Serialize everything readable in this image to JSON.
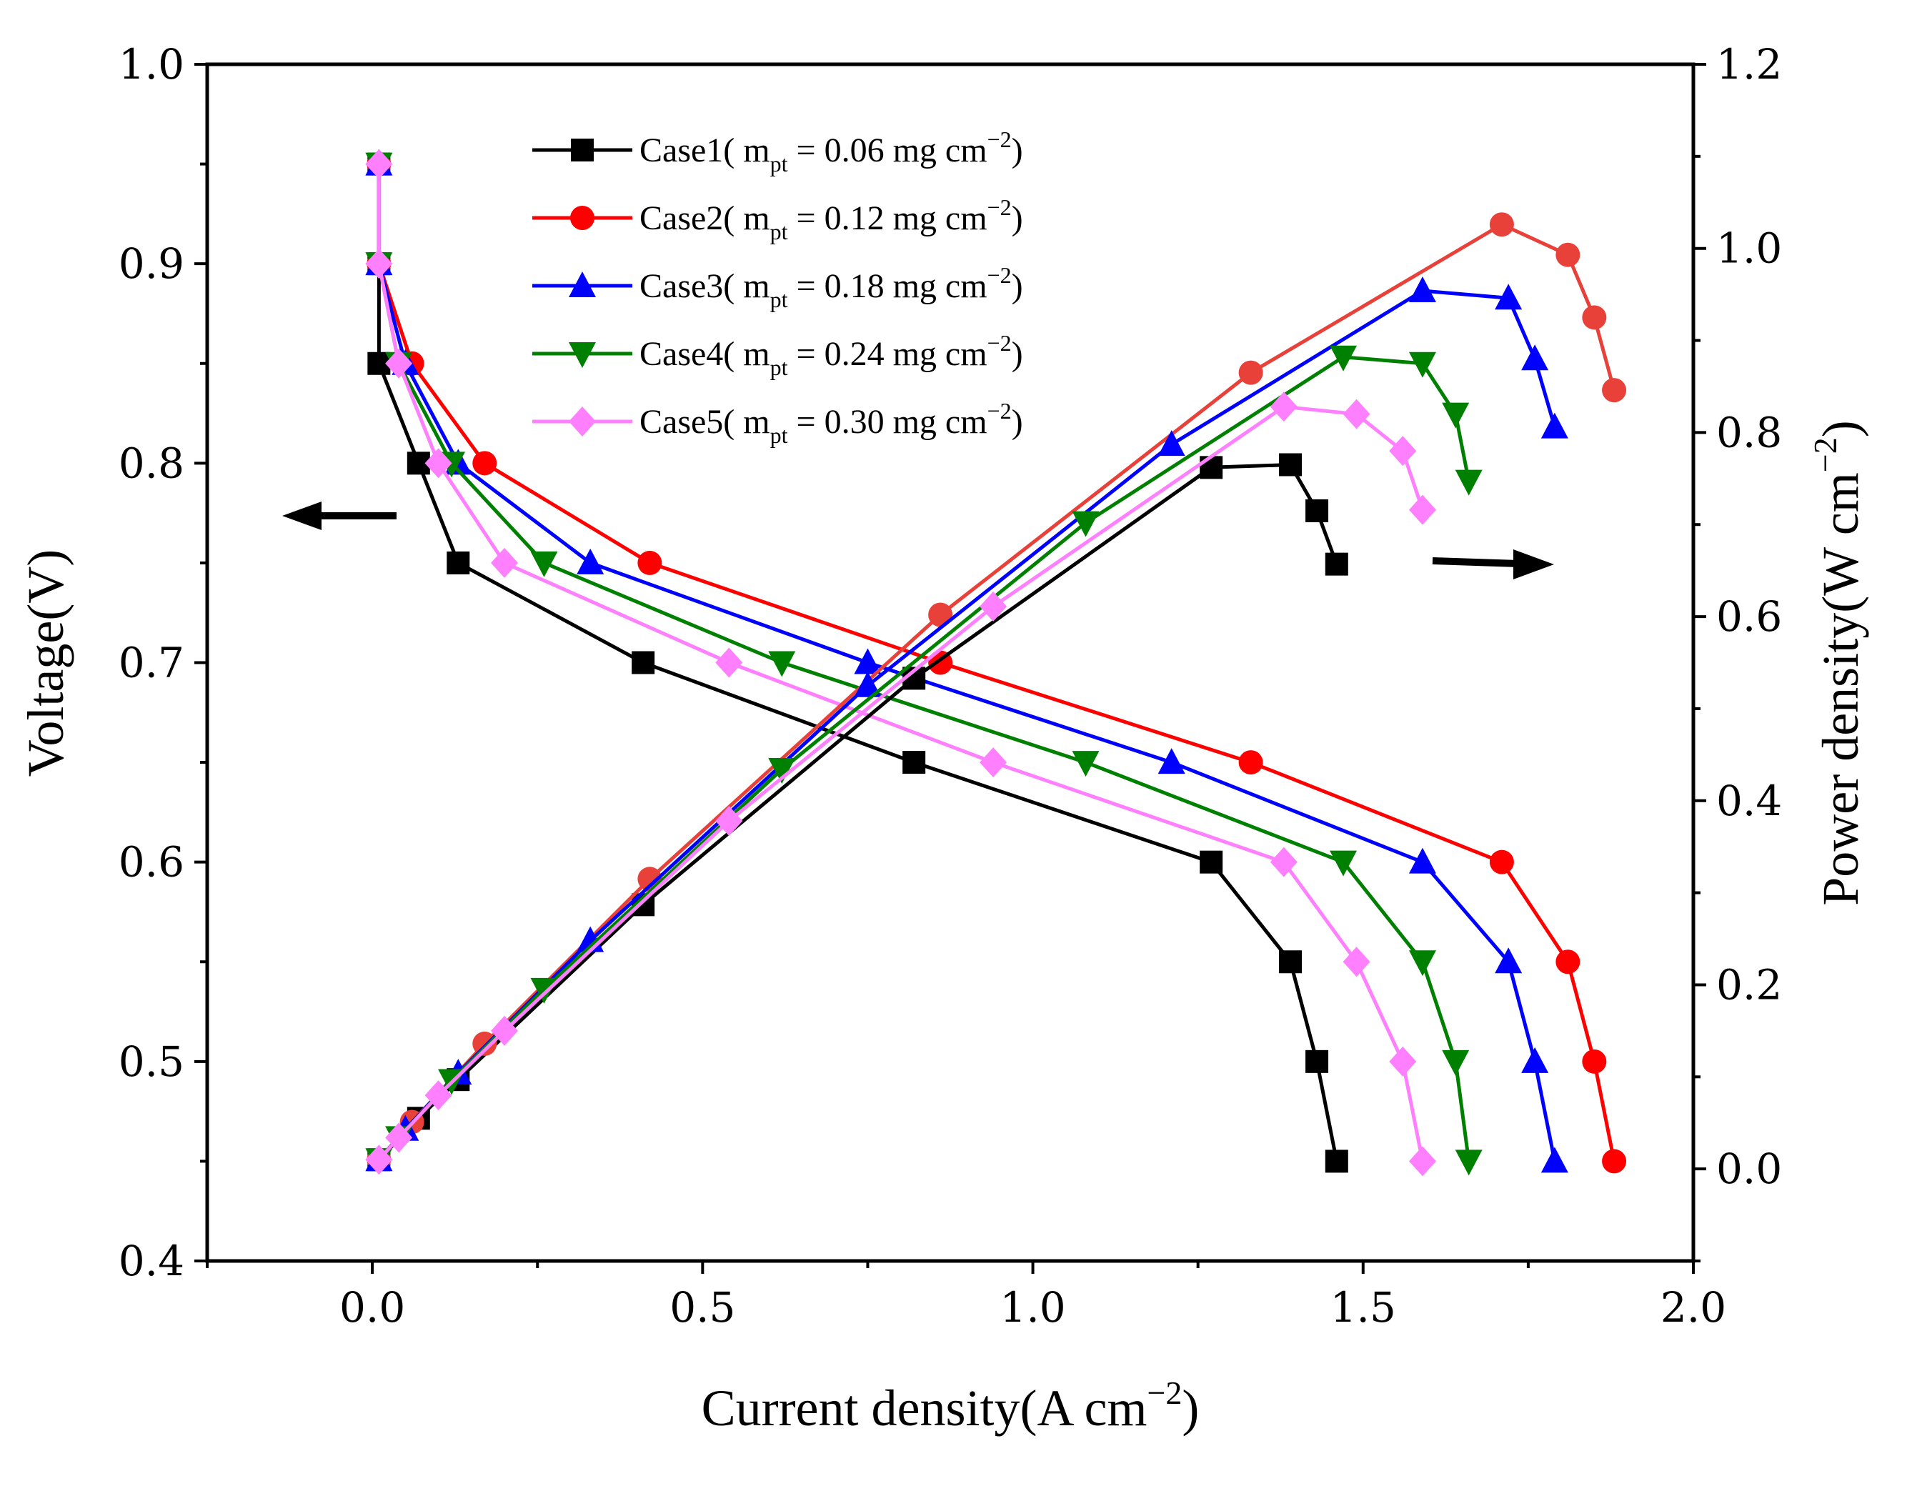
{
  "chart_data": {
    "type": "line",
    "x_axis": {
      "label": "Current density(A cm",
      "label_sup": "−2",
      "label_end": ")",
      "range": [
        -0.25,
        2.0
      ],
      "ticks": [
        "0.0",
        "0.5",
        "1.0",
        "1.5",
        "2.0"
      ]
    },
    "y_axis_left": {
      "label": "Voltage(V)",
      "range": [
        0.4,
        1.0
      ],
      "ticks": [
        "0.4",
        "0.5",
        "0.6",
        "0.7",
        "0.8",
        "0.9",
        "1.0"
      ]
    },
    "y_axis_right": {
      "label": "Power density(W cm",
      "label_sup": "−2",
      "label_end": ")",
      "range": [
        -0.1,
        1.2
      ],
      "ticks": [
        "0.0",
        "0.2",
        "0.4",
        "0.6",
        "0.8",
        "1.0",
        "1.2"
      ]
    },
    "annotations": {
      "left_arrow": "points to voltage axis",
      "right_arrow": "points to power density axis"
    },
    "legend": {
      "position": "top-center"
    },
    "series": [
      {
        "name": "Case1",
        "legend_prefix": "Case1( m",
        "legend_sub": "pt",
        "legend_mid": " = 0.06 mg cm",
        "legend_sup": "−2",
        "legend_end": ")",
        "color": "#000000",
        "power_color": "#000000",
        "marker": "square",
        "polarization": {
          "x": [
            0.01,
            0.01,
            0.01,
            0.07,
            0.13,
            0.41,
            0.82,
            1.27,
            1.39,
            1.43,
            1.46
          ],
          "y": [
            0.95,
            0.9,
            0.85,
            0.8,
            0.75,
            0.7,
            0.65,
            0.6,
            0.55,
            0.5,
            0.45
          ]
        },
        "power": {
          "x": [
            0.01,
            0.07,
            0.13,
            0.41,
            0.82,
            1.27,
            1.39,
            1.43,
            1.46
          ],
          "y": [
            0.01,
            0.055,
            0.097,
            0.287,
            0.533,
            0.762,
            0.765,
            0.715,
            0.657
          ]
        }
      },
      {
        "name": "Case2",
        "legend_prefix": "Case2( m",
        "legend_sub": "pt",
        "legend_mid": " = 0.12 mg cm",
        "legend_sup": "−2",
        "legend_end": ")",
        "color": "#ff0000",
        "power_color": "#e8413a",
        "marker": "circle",
        "polarization": {
          "x": [
            0.01,
            0.01,
            0.06,
            0.17,
            0.42,
            0.86,
            1.33,
            1.71,
            1.81,
            1.85,
            1.88
          ],
          "y": [
            0.95,
            0.9,
            0.85,
            0.8,
            0.75,
            0.7,
            0.65,
            0.6,
            0.55,
            0.5,
            0.45
          ]
        },
        "power": {
          "x": [
            0.01,
            0.06,
            0.17,
            0.42,
            0.86,
            1.33,
            1.71,
            1.81,
            1.85,
            1.88
          ],
          "y": [
            0.01,
            0.051,
            0.136,
            0.315,
            0.602,
            0.865,
            1.026,
            0.993,
            0.925,
            0.846
          ]
        }
      },
      {
        "name": "Case3",
        "legend_prefix": "Case3( m",
        "legend_sub": "pt",
        "legend_mid": " = 0.18 mg cm",
        "legend_sup": "−2",
        "legend_end": ")",
        "color": "#0000ff",
        "power_color": "#0000ff",
        "marker": "triangle-up",
        "polarization": {
          "x": [
            0.01,
            0.01,
            0.05,
            0.13,
            0.33,
            0.75,
            1.21,
            1.59,
            1.72,
            1.76,
            1.79
          ],
          "y": [
            0.95,
            0.9,
            0.85,
            0.8,
            0.75,
            0.7,
            0.65,
            0.6,
            0.55,
            0.5,
            0.45
          ]
        },
        "power": {
          "x": [
            0.01,
            0.05,
            0.13,
            0.33,
            0.75,
            1.21,
            1.59,
            1.72,
            1.76,
            1.79
          ],
          "y": [
            0.01,
            0.043,
            0.104,
            0.248,
            0.525,
            0.787,
            0.954,
            0.946,
            0.88,
            0.806
          ]
        }
      },
      {
        "name": "Case4",
        "legend_prefix": "Case4( m",
        "legend_sub": "pt",
        "legend_mid": " = 0.24 mg cm",
        "legend_sup": "−2",
        "legend_end": ")",
        "color": "#008000",
        "power_color": "#008000",
        "marker": "triangle-down",
        "polarization": {
          "x": [
            0.01,
            0.01,
            0.04,
            0.12,
            0.26,
            0.62,
            1.08,
            1.47,
            1.59,
            1.64,
            1.66
          ],
          "y": [
            0.95,
            0.9,
            0.85,
            0.8,
            0.75,
            0.7,
            0.65,
            0.6,
            0.55,
            0.5,
            0.45
          ]
        },
        "power": {
          "x": [
            0.01,
            0.04,
            0.12,
            0.26,
            0.62,
            1.08,
            1.47,
            1.59,
            1.64,
            1.66
          ],
          "y": [
            0.01,
            0.034,
            0.096,
            0.195,
            0.434,
            0.702,
            0.882,
            0.875,
            0.82,
            0.747
          ]
        }
      },
      {
        "name": "Case5",
        "legend_prefix": "Case5( m",
        "legend_sub": "pt",
        "legend_mid": " = 0.30 mg cm",
        "legend_sup": "−2",
        "legend_end": ")",
        "color": "#ff80ff",
        "power_color": "#ff80ff",
        "marker": "diamond",
        "polarization": {
          "x": [
            0.01,
            0.01,
            0.04,
            0.1,
            0.2,
            0.54,
            0.94,
            1.38,
            1.49,
            1.56,
            1.59
          ],
          "y": [
            0.95,
            0.9,
            0.85,
            0.8,
            0.75,
            0.7,
            0.65,
            0.6,
            0.55,
            0.5,
            0.45
          ]
        },
        "power": {
          "x": [
            0.01,
            0.04,
            0.1,
            0.2,
            0.54,
            0.94,
            1.38,
            1.49,
            1.56,
            1.59
          ],
          "y": [
            0.01,
            0.034,
            0.08,
            0.15,
            0.378,
            0.611,
            0.828,
            0.82,
            0.78,
            0.716
          ]
        }
      }
    ]
  }
}
